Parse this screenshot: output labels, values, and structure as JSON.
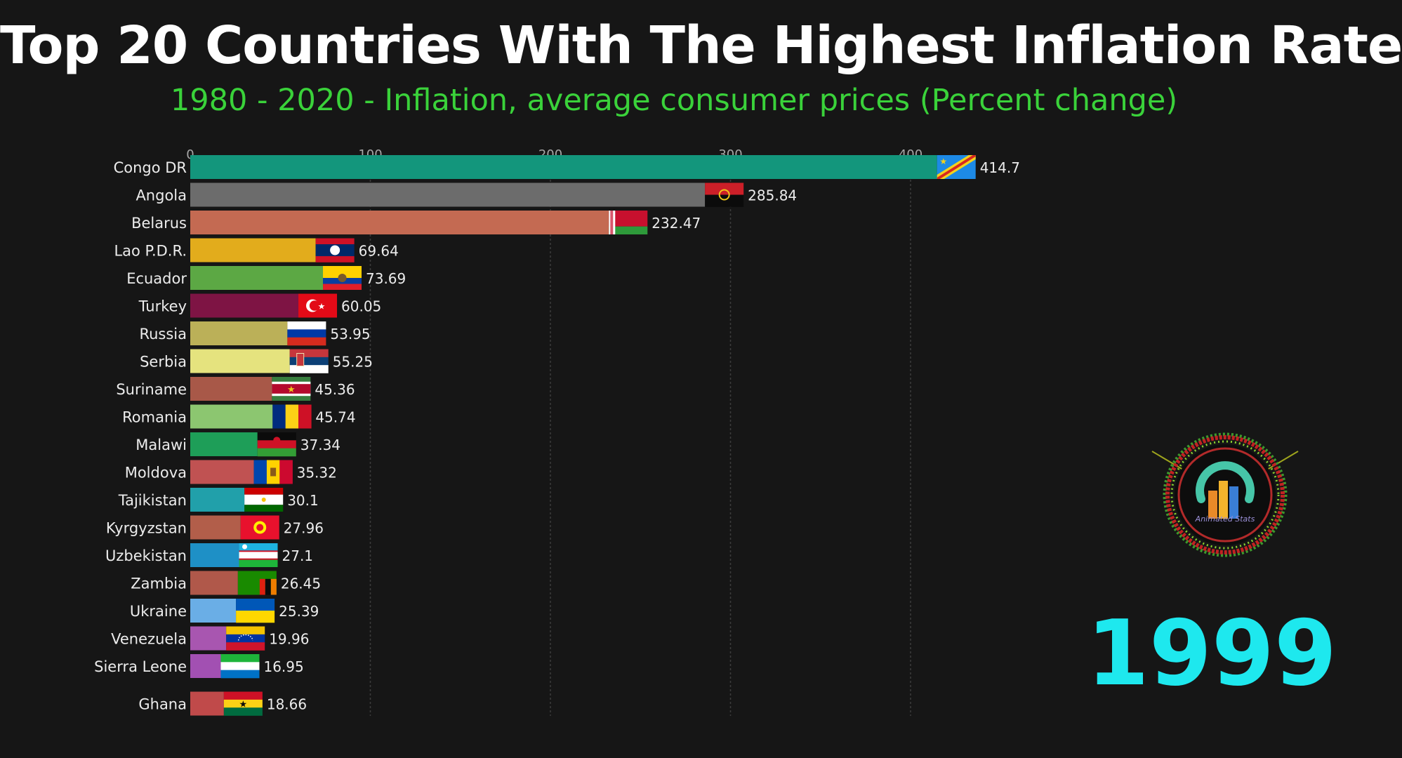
{
  "title": "Top 20 Countries With The Highest Inflation Rate",
  "subtitle": "1980 - 2020 - Inflation, average consumer prices (Percent change)",
  "year": "1999",
  "logo": {
    "icon": "animated-stats-logo",
    "text": "Animated Stats"
  },
  "chart_data": {
    "type": "bar",
    "orientation": "horizontal",
    "title": "Top 20 Countries With The Highest Inflation Rate",
    "subtitle": "1980 - 2020 - Inflation, average consumer prices (Percent change)",
    "xlim": [
      0,
      440
    ],
    "ticks": [
      0,
      100,
      200,
      300,
      400
    ],
    "grid": true,
    "categories": [
      "Congo DR",
      "Angola",
      "Belarus",
      "Lao P.D.R.",
      "Ecuador",
      "Turkey",
      "Russia",
      "Serbia",
      "Suriname",
      "Romania",
      "Malawi",
      "Moldova",
      "Tajikistan",
      "Kyrgyzstan",
      "Uzbekistan",
      "Zambia",
      "Ukraine",
      "Venezuela",
      "Sierra Leone",
      "Ghana"
    ],
    "values": [
      414.7,
      285.84,
      232.47,
      69.64,
      73.69,
      60.05,
      53.95,
      55.25,
      45.36,
      45.74,
      37.34,
      35.32,
      30.1,
      27.96,
      27.1,
      26.45,
      25.39,
      19.96,
      16.95,
      18.66
    ],
    "value_labels": [
      "414.7",
      "285.84",
      "232.47",
      "69.64",
      "73.69",
      "60.05",
      "53.95",
      "55.25",
      "45.36",
      "45.74",
      "37.34",
      "35.32",
      "30.1",
      "27.96",
      "27.1",
      "26.45",
      "25.39",
      "19.96",
      "16.95",
      "18.66"
    ],
    "bar_colors": [
      "#13967c",
      "#6c6c6c",
      "#c46a52",
      "#e2ac1c",
      "#5ca844",
      "#7e1444",
      "#bbb058",
      "#e5e37e",
      "#a85848",
      "#8cc670",
      "#1e9e58",
      "#c05252",
      "#21a0aa",
      "#b25e4a",
      "#1e90c6",
      "#b0584a",
      "#6aaee6",
      "#a856b0",
      "#a250b2",
      "#c04a4a"
    ],
    "flag_icons": [
      "flag-congo-dr-icon",
      "flag-angola-icon",
      "flag-belarus-icon",
      "flag-laos-icon",
      "flag-ecuador-icon",
      "flag-turkey-icon",
      "flag-russia-icon",
      "flag-serbia-icon",
      "flag-suriname-icon",
      "flag-romania-icon",
      "flag-malawi-icon",
      "flag-moldova-icon",
      "flag-tajikistan-icon",
      "flag-kyrgyzstan-icon",
      "flag-uzbekistan-icon",
      "flag-zambia-icon",
      "flag-ukraine-icon",
      "flag-venezuela-icon",
      "flag-sierra-leone-icon",
      "flag-ghana-icon"
    ]
  }
}
